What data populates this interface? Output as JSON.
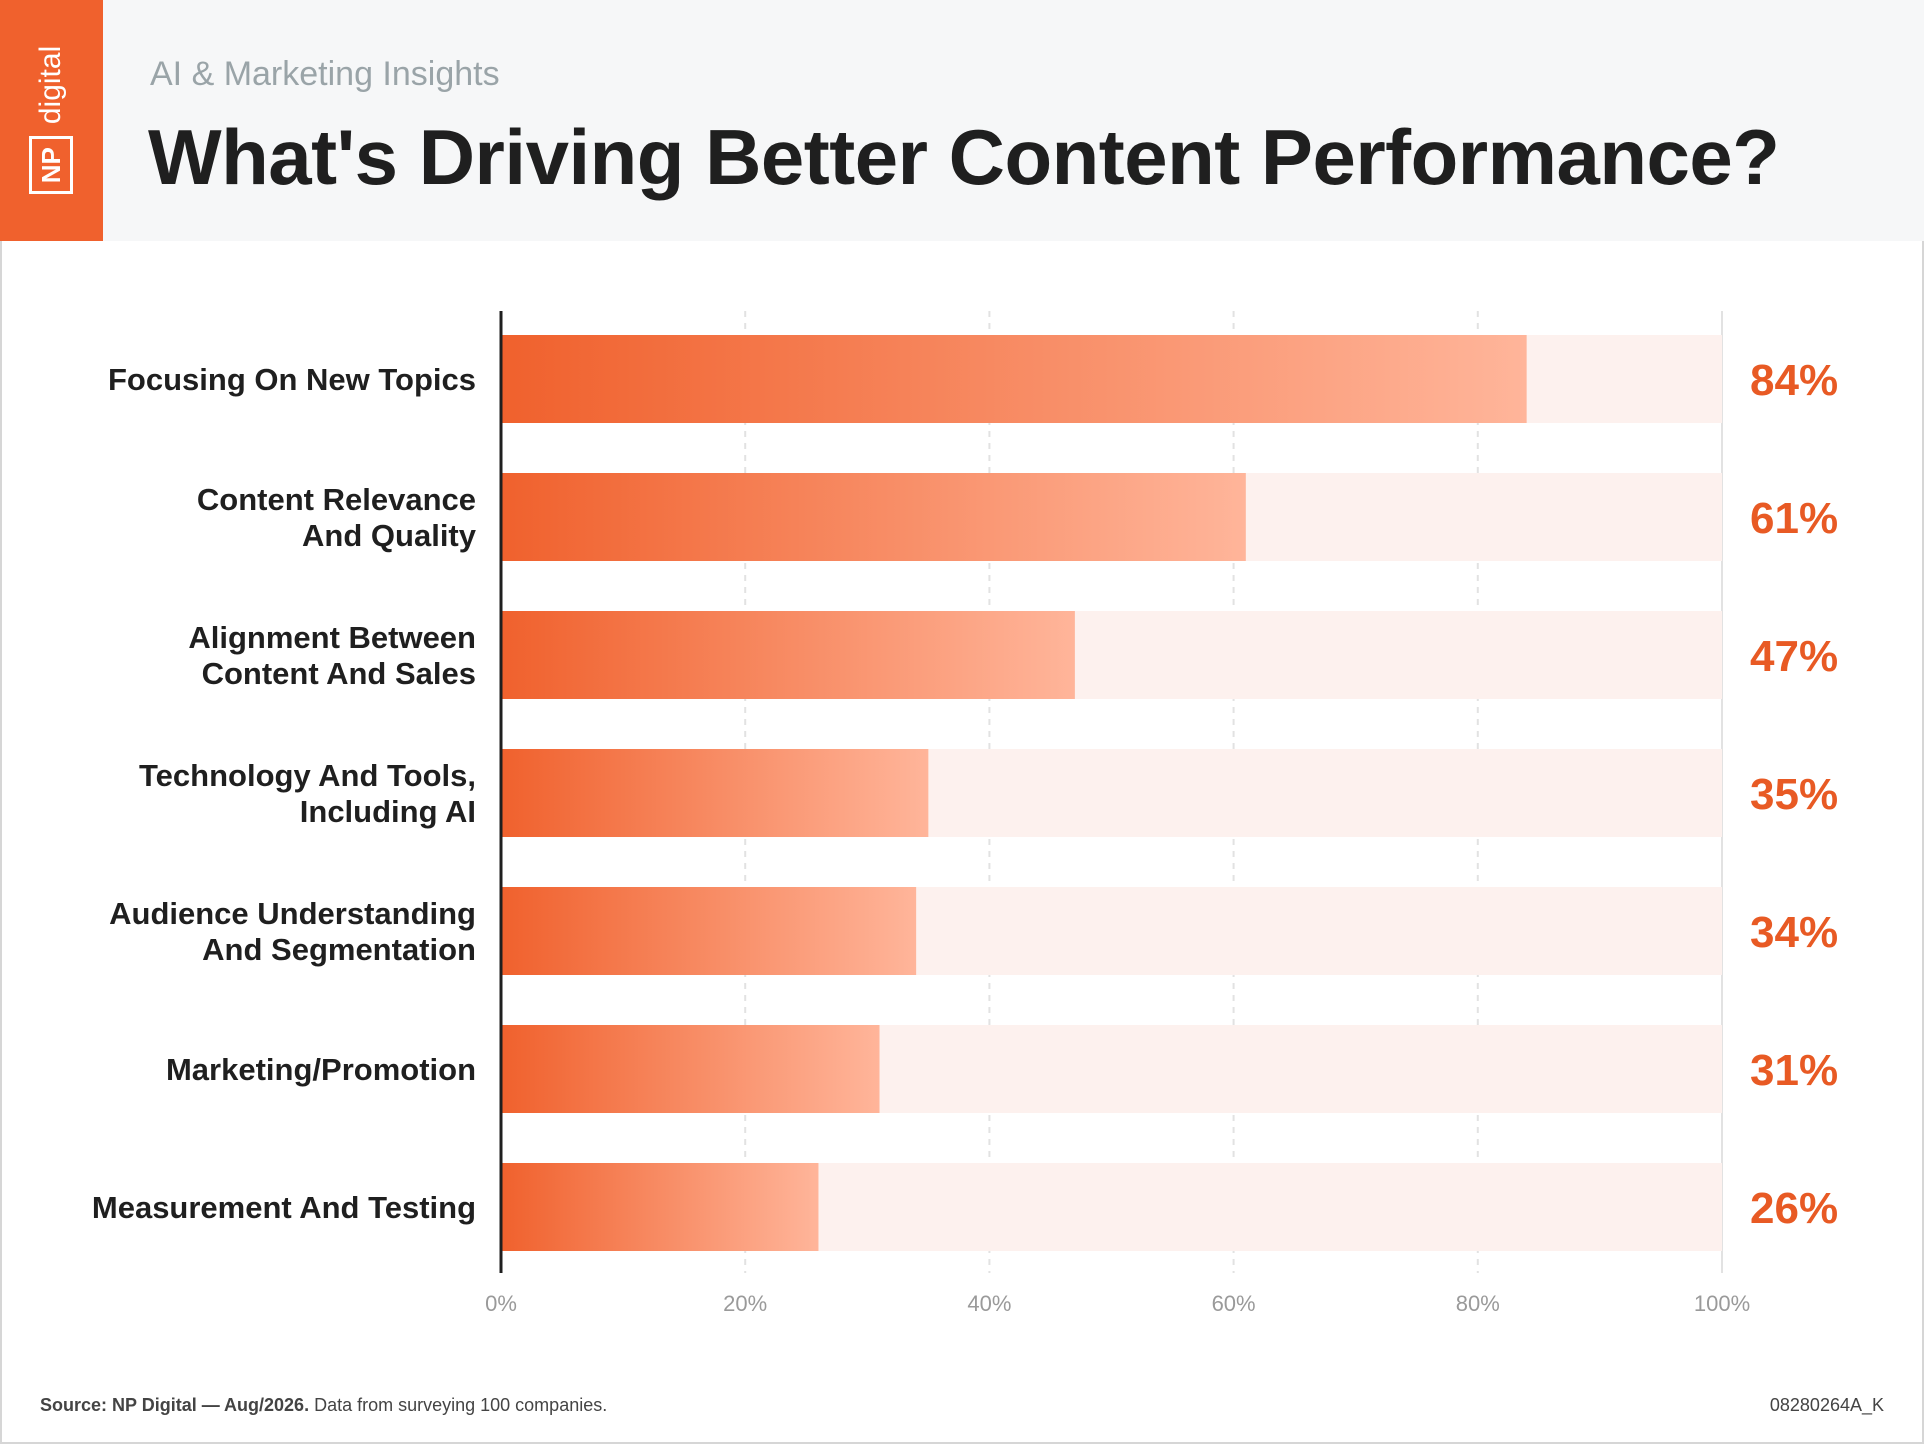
{
  "header": {
    "subtitle": "AI & Marketing Insights",
    "title": "What's Driving Better Content Performance?",
    "logo_np": "NP",
    "logo_digital": "digital"
  },
  "colors": {
    "brand": "#f0612d",
    "bar_start": "#f0612d",
    "bar_end": "#ffb59a",
    "track": "#fdf1ee",
    "value_text": "#e85a24"
  },
  "chart_data": {
    "type": "bar",
    "orientation": "horizontal",
    "categories": [
      [
        "Focusing On New Topics"
      ],
      [
        "Content Relevance",
        "And Quality"
      ],
      [
        "Alignment Between",
        "Content And Sales"
      ],
      [
        "Technology And Tools,",
        "Including AI"
      ],
      [
        "Audience Understanding",
        "And Segmentation"
      ],
      [
        "Marketing/Promotion"
      ],
      [
        "Measurement And Testing"
      ]
    ],
    "values": [
      84,
      61,
      47,
      35,
      34,
      31,
      26
    ],
    "value_labels": [
      "84%",
      "61%",
      "47%",
      "35%",
      "34%",
      "31%",
      "26%"
    ],
    "xlim": [
      0,
      100
    ],
    "xticks": [
      "0%",
      "20%",
      "40%",
      "60%",
      "80%",
      "100%"
    ],
    "grid": "dashed vertical"
  },
  "footer": {
    "source_bold": "Source: NP Digital — Aug/2026.",
    "source_rest": " Data from surveying 100 companies.",
    "code": "08280264A_K"
  }
}
